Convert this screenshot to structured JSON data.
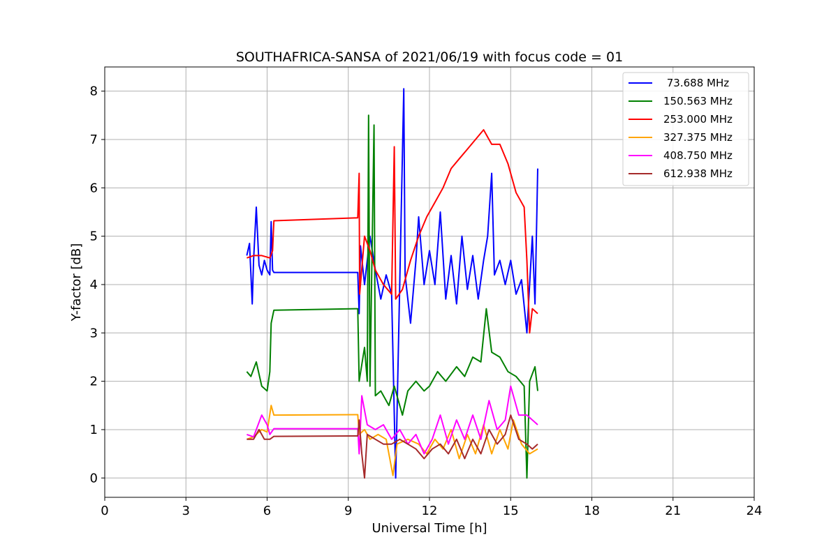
{
  "chart_data": {
    "type": "line",
    "title": "SOUTHAFRICA-SANSA of 2021/06/19 with focus code = 01",
    "xlabel": "Universal Time [h]",
    "ylabel": "Y-factor [dB]",
    "xlim": [
      0,
      24
    ],
    "ylim": [
      -0.4,
      8.5
    ],
    "xticks": [
      0,
      3,
      6,
      9,
      12,
      15,
      18,
      21,
      24
    ],
    "yticks": [
      0,
      1,
      2,
      3,
      4,
      5,
      6,
      7,
      8
    ],
    "grid": true,
    "legend_position": "top-right",
    "series": [
      {
        "name": " 73.688 MHz",
        "color": "#0000ff",
        "points": [
          [
            5.25,
            4.6
          ],
          [
            5.35,
            4.85
          ],
          [
            5.45,
            3.6
          ],
          [
            5.5,
            4.5
          ],
          [
            5.6,
            5.6
          ],
          [
            5.7,
            4.4
          ],
          [
            5.8,
            4.2
          ],
          [
            5.9,
            4.5
          ],
          [
            6.0,
            4.3
          ],
          [
            6.1,
            4.2
          ],
          [
            6.15,
            5.3
          ],
          [
            6.2,
            4.3
          ],
          [
            6.25,
            4.25
          ],
          [
            9.35,
            4.25
          ],
          [
            9.4,
            3.4
          ],
          [
            9.45,
            4.8
          ],
          [
            9.6,
            4.0
          ],
          [
            9.8,
            5.0
          ],
          [
            10.0,
            4.3
          ],
          [
            10.2,
            3.7
          ],
          [
            10.4,
            4.2
          ],
          [
            10.6,
            3.8
          ],
          [
            10.75,
            0.0
          ],
          [
            10.9,
            4.0
          ],
          [
            11.05,
            8.05
          ],
          [
            11.1,
            4.2
          ],
          [
            11.3,
            3.2
          ],
          [
            11.5,
            4.5
          ],
          [
            11.6,
            5.4
          ],
          [
            11.8,
            4.0
          ],
          [
            12.0,
            4.7
          ],
          [
            12.2,
            4.0
          ],
          [
            12.4,
            5.5
          ],
          [
            12.6,
            3.7
          ],
          [
            12.8,
            4.6
          ],
          [
            13.0,
            3.6
          ],
          [
            13.2,
            5.0
          ],
          [
            13.4,
            3.9
          ],
          [
            13.6,
            4.6
          ],
          [
            13.8,
            3.7
          ],
          [
            14.0,
            4.5
          ],
          [
            14.15,
            5.0
          ],
          [
            14.3,
            6.3
          ],
          [
            14.4,
            4.2
          ],
          [
            14.6,
            4.5
          ],
          [
            14.8,
            4.0
          ],
          [
            15.0,
            4.5
          ],
          [
            15.2,
            3.8
          ],
          [
            15.4,
            4.1
          ],
          [
            15.6,
            3.0
          ],
          [
            15.7,
            4.0
          ],
          [
            15.8,
            5.0
          ],
          [
            15.9,
            3.6
          ],
          [
            15.95,
            5.0
          ],
          [
            16.0,
            6.4
          ]
        ]
      },
      {
        "name": "150.563 MHz",
        "color": "#008000",
        "points": [
          [
            5.25,
            2.2
          ],
          [
            5.4,
            2.1
          ],
          [
            5.6,
            2.4
          ],
          [
            5.8,
            1.9
          ],
          [
            6.0,
            1.8
          ],
          [
            6.1,
            2.2
          ],
          [
            6.15,
            3.2
          ],
          [
            6.25,
            3.47
          ],
          [
            9.35,
            3.5
          ],
          [
            9.4,
            2.0
          ],
          [
            9.6,
            2.7
          ],
          [
            9.7,
            2.0
          ],
          [
            9.75,
            7.5
          ],
          [
            9.8,
            1.9
          ],
          [
            9.95,
            7.3
          ],
          [
            10.0,
            1.7
          ],
          [
            10.2,
            1.8
          ],
          [
            10.5,
            1.5
          ],
          [
            10.7,
            1.9
          ],
          [
            10.9,
            1.5
          ],
          [
            11.0,
            1.3
          ],
          [
            11.2,
            1.8
          ],
          [
            11.5,
            2.0
          ],
          [
            11.8,
            1.8
          ],
          [
            12.0,
            1.9
          ],
          [
            12.3,
            2.2
          ],
          [
            12.6,
            2.0
          ],
          [
            13.0,
            2.3
          ],
          [
            13.3,
            2.1
          ],
          [
            13.6,
            2.5
          ],
          [
            13.9,
            2.4
          ],
          [
            14.1,
            3.5
          ],
          [
            14.3,
            2.6
          ],
          [
            14.6,
            2.5
          ],
          [
            14.9,
            2.2
          ],
          [
            15.2,
            2.1
          ],
          [
            15.5,
            1.9
          ],
          [
            15.6,
            0.0
          ],
          [
            15.7,
            2.0
          ],
          [
            15.9,
            2.3
          ],
          [
            16.0,
            1.8
          ]
        ]
      },
      {
        "name": "253.000 MHz",
        "color": "#ff0000",
        "points": [
          [
            5.25,
            4.55
          ],
          [
            5.5,
            4.6
          ],
          [
            5.8,
            4.6
          ],
          [
            6.1,
            4.55
          ],
          [
            6.2,
            4.7
          ],
          [
            6.25,
            5.32
          ],
          [
            9.35,
            5.38
          ],
          [
            9.4,
            6.3
          ],
          [
            9.42,
            3.8
          ],
          [
            9.6,
            5.0
          ],
          [
            9.8,
            4.7
          ],
          [
            10.0,
            4.3
          ],
          [
            10.3,
            4.0
          ],
          [
            10.6,
            3.8
          ],
          [
            10.7,
            6.85
          ],
          [
            10.75,
            3.7
          ],
          [
            11.0,
            3.9
          ],
          [
            11.3,
            4.5
          ],
          [
            11.6,
            5.0
          ],
          [
            11.9,
            5.4
          ],
          [
            12.2,
            5.7
          ],
          [
            12.5,
            6.0
          ],
          [
            12.8,
            6.4
          ],
          [
            13.1,
            6.6
          ],
          [
            13.4,
            6.8
          ],
          [
            13.7,
            7.0
          ],
          [
            14.0,
            7.2
          ],
          [
            14.3,
            6.9
          ],
          [
            14.6,
            6.9
          ],
          [
            14.9,
            6.5
          ],
          [
            15.2,
            5.9
          ],
          [
            15.5,
            5.6
          ],
          [
            15.6,
            4.5
          ],
          [
            15.7,
            3.0
          ],
          [
            15.8,
            3.5
          ],
          [
            16.0,
            3.4
          ]
        ]
      },
      {
        "name": "327.375 MHz",
        "color": "#ffa500",
        "points": [
          [
            5.25,
            0.8
          ],
          [
            5.5,
            0.85
          ],
          [
            5.8,
            1.0
          ],
          [
            6.0,
            0.95
          ],
          [
            6.15,
            1.5
          ],
          [
            6.25,
            1.3
          ],
          [
            9.35,
            1.31
          ],
          [
            9.4,
            0.9
          ],
          [
            9.6,
            1.0
          ],
          [
            9.8,
            0.8
          ],
          [
            10.1,
            0.9
          ],
          [
            10.4,
            0.8
          ],
          [
            10.65,
            0.05
          ],
          [
            10.8,
            0.7
          ],
          [
            11.2,
            0.8
          ],
          [
            11.6,
            0.7
          ],
          [
            11.9,
            0.5
          ],
          [
            12.2,
            0.8
          ],
          [
            12.5,
            0.6
          ],
          [
            12.8,
            1.0
          ],
          [
            13.1,
            0.4
          ],
          [
            13.4,
            0.9
          ],
          [
            13.7,
            0.5
          ],
          [
            14.0,
            1.1
          ],
          [
            14.3,
            0.5
          ],
          [
            14.6,
            1.0
          ],
          [
            14.9,
            0.6
          ],
          [
            15.1,
            1.2
          ],
          [
            15.4,
            0.7
          ],
          [
            15.7,
            0.5
          ],
          [
            16.0,
            0.6
          ]
        ]
      },
      {
        "name": "408.750 MHz",
        "color": "#ff00ff",
        "points": [
          [
            5.25,
            0.9
          ],
          [
            5.5,
            0.85
          ],
          [
            5.8,
            1.3
          ],
          [
            6.0,
            1.1
          ],
          [
            6.1,
            0.9
          ],
          [
            6.25,
            1.02
          ],
          [
            9.35,
            1.02
          ],
          [
            9.4,
            0.5
          ],
          [
            9.5,
            1.7
          ],
          [
            9.7,
            1.1
          ],
          [
            10.0,
            1.0
          ],
          [
            10.3,
            1.1
          ],
          [
            10.6,
            0.8
          ],
          [
            10.9,
            1.0
          ],
          [
            11.2,
            0.7
          ],
          [
            11.5,
            0.9
          ],
          [
            11.8,
            0.5
          ],
          [
            12.1,
            0.8
          ],
          [
            12.4,
            1.3
          ],
          [
            12.7,
            0.7
          ],
          [
            13.0,
            1.2
          ],
          [
            13.3,
            0.8
          ],
          [
            13.6,
            1.3
          ],
          [
            13.9,
            0.8
          ],
          [
            14.2,
            1.6
          ],
          [
            14.5,
            1.0
          ],
          [
            14.8,
            1.2
          ],
          [
            15.0,
            1.9
          ],
          [
            15.3,
            1.3
          ],
          [
            15.6,
            1.3
          ],
          [
            15.8,
            1.2
          ],
          [
            16.0,
            1.1
          ]
        ]
      },
      {
        "name": "612.938 MHz",
        "color": "#a52a2a",
        "points": [
          [
            5.25,
            0.8
          ],
          [
            5.5,
            0.8
          ],
          [
            5.7,
            1.0
          ],
          [
            5.9,
            0.8
          ],
          [
            6.1,
            0.8
          ],
          [
            6.25,
            0.86
          ],
          [
            9.35,
            0.87
          ],
          [
            9.4,
            1.2
          ],
          [
            9.5,
            0.5
          ],
          [
            9.6,
            0.0
          ],
          [
            9.7,
            0.9
          ],
          [
            10.0,
            0.8
          ],
          [
            10.3,
            0.7
          ],
          [
            10.6,
            0.7
          ],
          [
            10.9,
            0.8
          ],
          [
            11.2,
            0.7
          ],
          [
            11.5,
            0.6
          ],
          [
            11.8,
            0.4
          ],
          [
            12.1,
            0.6
          ],
          [
            12.4,
            0.7
          ],
          [
            12.7,
            0.5
          ],
          [
            13.0,
            0.8
          ],
          [
            13.3,
            0.4
          ],
          [
            13.6,
            0.8
          ],
          [
            13.9,
            0.5
          ],
          [
            14.2,
            1.0
          ],
          [
            14.5,
            0.7
          ],
          [
            14.8,
            0.9
          ],
          [
            15.0,
            1.3
          ],
          [
            15.3,
            0.8
          ],
          [
            15.6,
            0.7
          ],
          [
            15.8,
            0.6
          ],
          [
            16.0,
            0.7
          ]
        ]
      }
    ]
  }
}
